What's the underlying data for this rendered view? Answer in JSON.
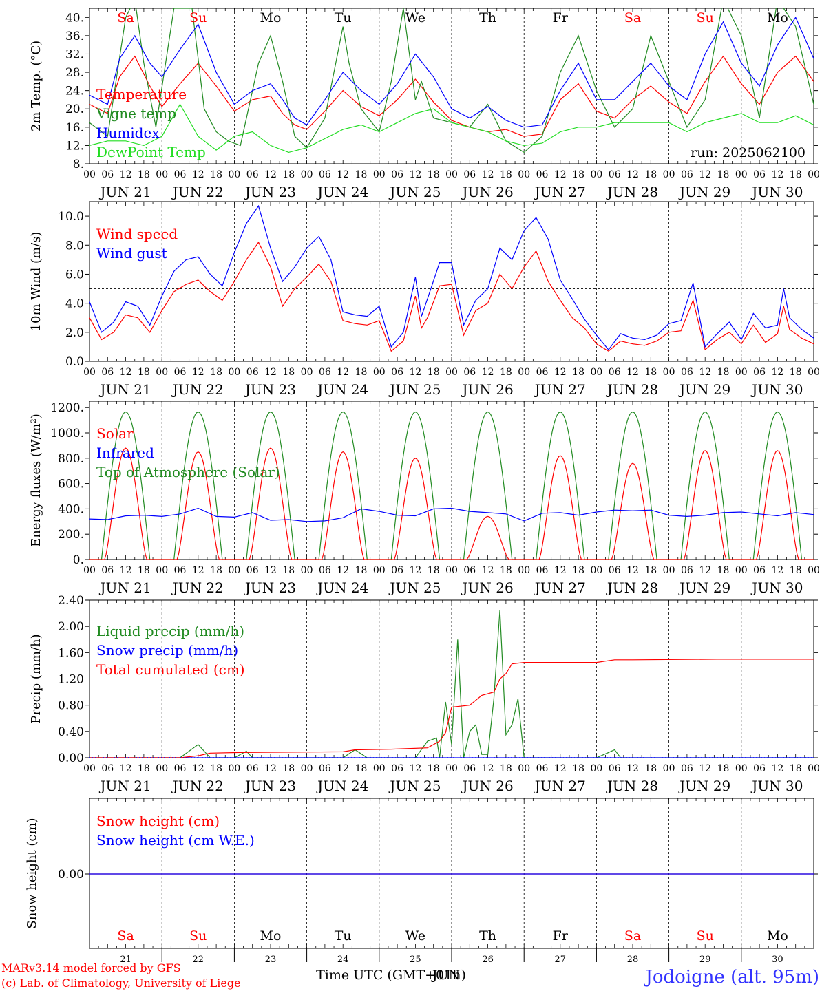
{
  "run_label": "run: 2025062100",
  "footer": {
    "model": "MARv3.14 model forced by GFS",
    "copyright": "(c) Lab. of Climatology, University of Liege",
    "xlabel": "Time UTC (GMT+01h)",
    "xlabel_overlay": "JUN",
    "station": "Jodoigne (alt. 95m)"
  },
  "hour_ticks": [
    "00",
    "06",
    "12",
    "18"
  ],
  "day_labels": [
    "JUN 21",
    "JUN 22",
    "JUN 23",
    "JUN 24",
    "JUN 25",
    "JUN 26",
    "JUN 27",
    "JUN 28",
    "JUN 29",
    "JUN 30"
  ],
  "weekdays": [
    {
      "label": "Sa",
      "color": "#ff0000"
    },
    {
      "label": "Su",
      "color": "#ff0000"
    },
    {
      "label": "Mo",
      "color": "#000000"
    },
    {
      "label": "Tu",
      "color": "#000000"
    },
    {
      "label": "We",
      "color": "#000000"
    },
    {
      "label": "Th",
      "color": "#000000"
    },
    {
      "label": "Fr",
      "color": "#000000"
    },
    {
      "label": "Sa",
      "color": "#ff0000"
    },
    {
      "label": "Su",
      "color": "#ff0000"
    },
    {
      "label": "Mo",
      "color": "#000000"
    }
  ],
  "bottom_day_numbers": [
    "21",
    "22",
    "23",
    "24",
    "25",
    "26",
    "27",
    "28",
    "29",
    "30"
  ],
  "chart_data": [
    {
      "type": "line",
      "ylabel": "2m Temp. (°C)",
      "ylim": [
        8,
        42
      ],
      "yticks": [
        8,
        12,
        16,
        20,
        24,
        28,
        32,
        36,
        40
      ],
      "ytick_labels": [
        "8.",
        "12.",
        "16.",
        "20.",
        "24.",
        "28.",
        "32.",
        "36.",
        "40."
      ],
      "x_unit": "hours since 2025-06-21 00 UTC",
      "series": [
        {
          "name": "Temperature",
          "color": "#ff0000",
          "x": [
            0,
            6,
            10,
            15,
            20,
            24,
            30,
            36,
            42,
            48,
            54,
            60,
            64,
            68,
            72,
            78,
            84,
            90,
            96,
            102,
            108,
            114,
            120,
            126,
            132,
            138,
            144,
            150,
            156,
            162,
            168,
            174,
            180,
            186,
            192,
            198,
            204,
            210,
            216,
            222,
            228,
            234,
            240
          ],
          "y": [
            21,
            19,
            27,
            31.5,
            25,
            20.5,
            25.5,
            30,
            25,
            19.5,
            22,
            22.8,
            19,
            16.5,
            15.5,
            19.5,
            24,
            20.5,
            18.5,
            22,
            26.5,
            21.5,
            17.5,
            16,
            15,
            15.5,
            14,
            14.5,
            22,
            25.5,
            19.5,
            18,
            22,
            25,
            21.5,
            19,
            26,
            31.5,
            25.5,
            21,
            28,
            31.5,
            26
          ]
        },
        {
          "name": "Vigne temp",
          "color": "#228b22",
          "x": [
            0,
            6,
            12,
            15,
            18,
            22,
            28,
            34,
            38,
            42,
            46,
            50,
            56,
            60,
            64,
            68,
            72,
            78,
            84,
            86,
            90,
            96,
            100,
            104,
            108,
            110,
            114,
            120,
            126,
            132,
            138,
            144,
            150,
            156,
            162,
            168,
            174,
            180,
            186,
            192,
            198,
            204,
            210,
            216,
            222,
            228,
            234,
            240
          ],
          "y": [
            17,
            14,
            40,
            44,
            30,
            16,
            42,
            42,
            20,
            15,
            13,
            12,
            30,
            36,
            26,
            14,
            11.5,
            18,
            38,
            30,
            20,
            15,
            26,
            42,
            22,
            26,
            18,
            17,
            16,
            21,
            13,
            10.5,
            14,
            28,
            36,
            24,
            16,
            20,
            36,
            26,
            16,
            22,
            44,
            36,
            18,
            44,
            38,
            21
          ]
        },
        {
          "name": "Humidex",
          "color": "#0000ff",
          "x": [
            0,
            6,
            10,
            15,
            20,
            24,
            30,
            36,
            42,
            48,
            54,
            60,
            64,
            68,
            72,
            78,
            84,
            90,
            96,
            102,
            108,
            114,
            120,
            126,
            132,
            138,
            144,
            150,
            156,
            162,
            168,
            174,
            180,
            186,
            192,
            198,
            204,
            210,
            216,
            222,
            228,
            234,
            240
          ],
          "y": [
            23,
            21,
            31,
            36,
            30,
            27,
            33,
            38.5,
            28,
            21,
            24,
            25.5,
            22,
            18,
            16.5,
            22,
            28,
            24,
            21,
            25.5,
            32,
            27,
            20,
            18,
            20.5,
            17.5,
            16,
            16.5,
            24,
            30,
            22,
            22,
            26,
            30,
            25,
            22,
            32,
            39,
            30,
            25,
            34,
            40,
            31
          ]
        },
        {
          "name": "DewPoint Temp",
          "color": "#22dd22",
          "x": [
            0,
            6,
            12,
            18,
            24,
            30,
            36,
            42,
            48,
            54,
            60,
            66,
            72,
            78,
            84,
            90,
            96,
            102,
            108,
            114,
            120,
            126,
            132,
            138,
            144,
            150,
            156,
            162,
            168,
            174,
            180,
            186,
            192,
            198,
            204,
            210,
            216,
            222,
            228,
            234,
            240
          ],
          "y": [
            12,
            13,
            13,
            12,
            14,
            21,
            14,
            11,
            14,
            15,
            12,
            10.5,
            11.5,
            13.5,
            15.5,
            16.5,
            15,
            17,
            19,
            20,
            17,
            16,
            15,
            13,
            12,
            12.5,
            15,
            16,
            16,
            17,
            17,
            17,
            17,
            15,
            17,
            18,
            19,
            17,
            17,
            18.5,
            16.5
          ]
        }
      ]
    },
    {
      "type": "line",
      "ylabel": "10m Wind (m/s)",
      "ylim": [
        0,
        11
      ],
      "yticks": [
        0,
        2,
        4,
        6,
        8,
        10
      ],
      "ytick_labels": [
        "0.0",
        "2.0",
        "4.0",
        "6.0",
        "8.0",
        "10.0"
      ],
      "reference_line": 5,
      "x_unit": "hours since 2025-06-21 00 UTC",
      "series": [
        {
          "name": "Wind speed",
          "color": "#ff0000",
          "x": [
            0,
            4,
            8,
            12,
            16,
            20,
            24,
            28,
            32,
            36,
            40,
            44,
            48,
            52,
            56,
            60,
            64,
            68,
            72,
            76,
            80,
            84,
            88,
            92,
            96,
            100,
            104,
            108,
            110,
            112,
            116,
            120,
            124,
            128,
            132,
            136,
            140,
            144,
            148,
            152,
            156,
            160,
            164,
            168,
            172,
            176,
            180,
            184,
            188,
            192,
            196,
            200,
            204,
            208,
            212,
            216,
            220,
            224,
            228,
            230,
            232,
            236,
            240
          ],
          "y": [
            3,
            1.5,
            2,
            3.2,
            3,
            2,
            3.5,
            4.8,
            5.3,
            5.6,
            4.8,
            4.2,
            5.5,
            7,
            8.2,
            6.5,
            3.8,
            5,
            5.8,
            6.7,
            5.5,
            2.8,
            2.6,
            2.5,
            2.8,
            0.7,
            1.4,
            4.5,
            2.3,
            3,
            5.2,
            5.3,
            1.8,
            3.5,
            4,
            6,
            5,
            6.5,
            7.6,
            5.5,
            4.2,
            3,
            2.3,
            1.2,
            0.7,
            1.4,
            1.2,
            1.1,
            1.4,
            2,
            2.1,
            4.2,
            0.8,
            1.5,
            2,
            1.2,
            2.5,
            1.3,
            1.9,
            3.8,
            2.2,
            1.6,
            1.2
          ]
        },
        {
          "name": "Wind gust",
          "color": "#0000ff",
          "x": [
            0,
            4,
            8,
            12,
            16,
            20,
            24,
            28,
            32,
            36,
            40,
            44,
            48,
            52,
            56,
            60,
            64,
            68,
            72,
            76,
            80,
            84,
            88,
            92,
            96,
            100,
            104,
            108,
            110,
            112,
            116,
            120,
            124,
            128,
            132,
            136,
            140,
            144,
            148,
            152,
            156,
            160,
            164,
            168,
            172,
            176,
            180,
            184,
            188,
            192,
            196,
            200,
            204,
            208,
            212,
            216,
            220,
            224,
            228,
            230,
            232,
            236,
            240
          ],
          "y": [
            4.1,
            2,
            2.7,
            4.1,
            3.8,
            2.5,
            4.5,
            6.2,
            7,
            7.2,
            6,
            5.2,
            7.5,
            9.5,
            10.7,
            7.8,
            5.5,
            6.5,
            7.8,
            8.6,
            7,
            3.4,
            3.2,
            3.1,
            3.8,
            1,
            2,
            5.8,
            3.1,
            4.3,
            6.8,
            6.8,
            2.5,
            4.2,
            5,
            7.8,
            7,
            9,
            9.9,
            8.4,
            5.6,
            4.3,
            2.9,
            1.8,
            0.8,
            1.9,
            1.6,
            1.5,
            1.8,
            2.6,
            2.8,
            5.4,
            1,
            1.9,
            2.7,
            1.5,
            3.3,
            2.3,
            2.5,
            5,
            3,
            2.2,
            1.6
          ]
        }
      ]
    },
    {
      "type": "line",
      "ylabel": "Energy fluxes (W/m²)",
      "ylim": [
        0,
        1250
      ],
      "yticks": [
        0,
        200,
        400,
        600,
        800,
        1000,
        1200
      ],
      "ytick_labels": [
        "0.",
        "200.",
        "400.",
        "600.",
        "800.",
        "1000.",
        "1200."
      ],
      "x_unit": "hours since 2025-06-21 00 UTC",
      "daily_solar_peaks": [
        880,
        850,
        880,
        850,
        800,
        340,
        820,
        760,
        860,
        860
      ],
      "toa_peak": 1165,
      "infrared": {
        "x": [
          0,
          6,
          12,
          18,
          24,
          30,
          36,
          42,
          48,
          54,
          60,
          66,
          72,
          78,
          84,
          90,
          96,
          102,
          108,
          114,
          120,
          126,
          132,
          138,
          144,
          150,
          156,
          162,
          168,
          174,
          180,
          186,
          192,
          198,
          204,
          210,
          216,
          222,
          228,
          234,
          240
        ],
        "y": [
          320,
          315,
          345,
          350,
          340,
          360,
          405,
          340,
          335,
          370,
          310,
          315,
          300,
          305,
          330,
          400,
          380,
          350,
          345,
          400,
          405,
          380,
          370,
          360,
          305,
          365,
          370,
          350,
          375,
          390,
          385,
          390,
          350,
          340,
          350,
          370,
          375,
          360,
          345,
          370,
          355
        ]
      },
      "series": [
        {
          "name": "Solar",
          "color": "#ff0000"
        },
        {
          "name": "Infrared",
          "color": "#0000ff"
        },
        {
          "name": "Top of Atmosphere (Solar)",
          "color": "#228b22"
        }
      ]
    },
    {
      "type": "line",
      "ylabel": "Precip (mm/h)",
      "ylim": [
        0,
        2.4
      ],
      "yticks": [
        0,
        0.4,
        0.8,
        1.2,
        1.6,
        2.0,
        2.4
      ],
      "ytick_labels": [
        "0.00",
        "0.40",
        "0.80",
        "1.20",
        "1.60",
        "2.00",
        "2.40"
      ],
      "x_unit": "hours since 2025-06-21 00 UTC",
      "series": [
        {
          "name": "Liquid precip (mm/h)",
          "color": "#228b22",
          "x": [
            0,
            30,
            36,
            40,
            48,
            52,
            54,
            56,
            60,
            84,
            88,
            92,
            108,
            112,
            115,
            116,
            118,
            120,
            122,
            124,
            126,
            128,
            130,
            132,
            134,
            136,
            138,
            140,
            142,
            144,
            168,
            172,
            174,
            176,
            180,
            240
          ],
          "y": [
            0,
            0,
            0.2,
            0,
            0,
            0.1,
            0,
            0,
            0,
            0,
            0.12,
            0,
            0,
            0.25,
            0.3,
            0,
            0.85,
            0.2,
            1.8,
            0,
            0.4,
            0.5,
            0.05,
            0.05,
            0.9,
            2.25,
            0.35,
            0.5,
            0.9,
            0,
            0,
            0.08,
            0.12,
            0,
            0,
            0
          ]
        },
        {
          "name": "Snow precip (mm/h)",
          "color": "#0000ff",
          "x": [
            0,
            240
          ],
          "y": [
            0,
            0
          ]
        },
        {
          "name": "Total cumulated (cm)",
          "color": "#ff0000",
          "x": [
            0,
            30,
            36,
            40,
            50,
            84,
            88,
            100,
            112,
            116,
            118,
            120,
            126,
            130,
            134,
            136,
            138,
            140,
            144,
            168,
            174,
            180,
            208,
            240
          ],
          "y": [
            0,
            0,
            0.03,
            0.07,
            0.08,
            0.09,
            0.12,
            0.13,
            0.15,
            0.25,
            0.38,
            0.77,
            0.8,
            0.95,
            1.0,
            1.2,
            1.28,
            1.43,
            1.45,
            1.45,
            1.49,
            1.49,
            1.5,
            1.5
          ]
        }
      ]
    },
    {
      "type": "line",
      "ylabel": "Snow height (cm)",
      "yticks": [
        0
      ],
      "ytick_labels": [
        "0.00"
      ],
      "x_unit": "hours since 2025-06-21 00 UTC",
      "series": [
        {
          "name": "Snow height (cm)",
          "color": "#ff0000",
          "x": [
            0,
            240
          ],
          "y": [
            0,
            0
          ]
        },
        {
          "name": "Snow height (cm W.E.)",
          "color": "#0000ff",
          "x": [
            0,
            240
          ],
          "y": [
            0,
            0
          ]
        }
      ]
    }
  ]
}
